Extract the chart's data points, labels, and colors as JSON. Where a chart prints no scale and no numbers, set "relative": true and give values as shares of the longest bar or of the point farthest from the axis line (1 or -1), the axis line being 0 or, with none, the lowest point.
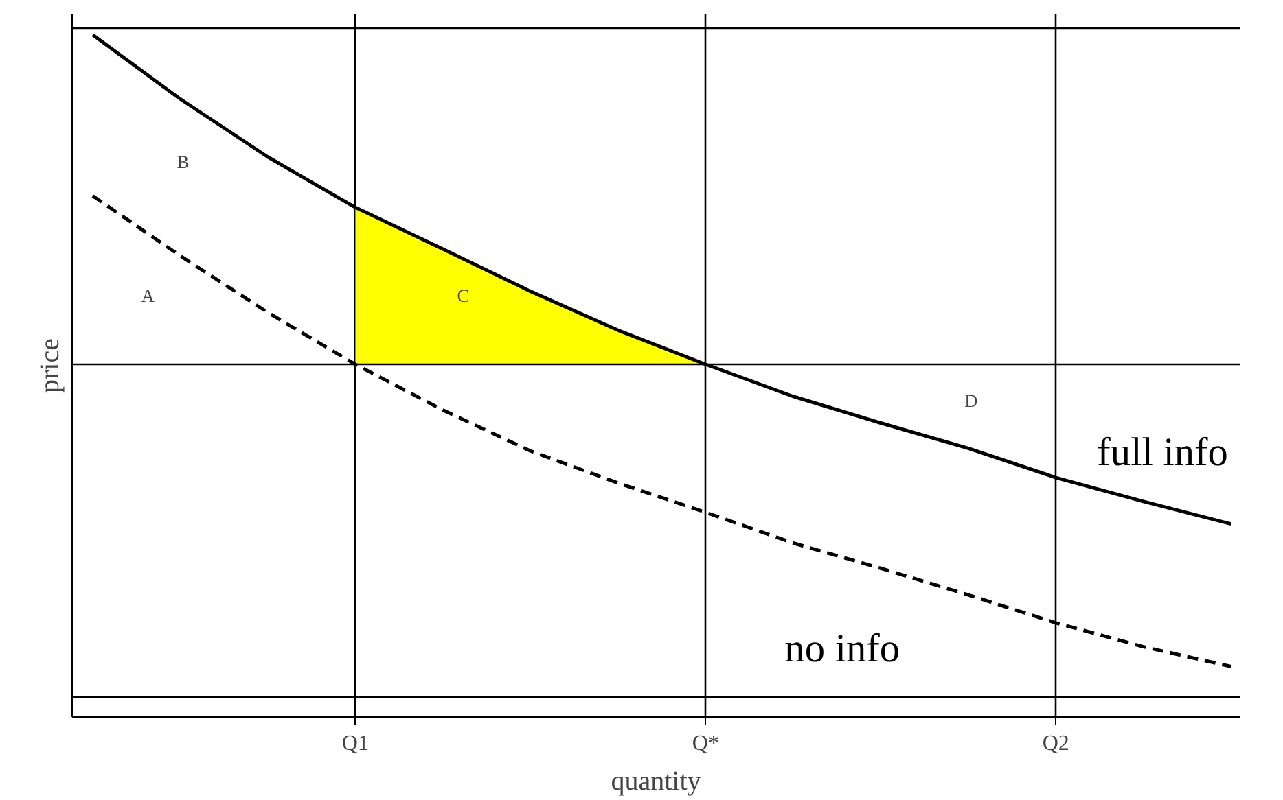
{
  "chart_data": {
    "type": "line",
    "relative": true,
    "xlabel": "quantity",
    "ylabel": "price",
    "categories": [
      null,
      null,
      null,
      "Q1",
      null,
      null,
      null,
      "Q*",
      null,
      null,
      null,
      "Q2",
      null,
      null
    ],
    "grid": "x",
    "series": [
      {
        "name": "full info",
        "color": "#000000",
        "line_style": "solid",
        "values": [
          1.0,
          0.906,
          0.821,
          0.747,
          0.686,
          0.624,
          0.567,
          0.517,
          0.47,
          0.431,
          0.394,
          0.351,
          0.316,
          0.283
        ]
      },
      {
        "name": "no info",
        "color": "#000000",
        "line_style": "dashed",
        "values": [
          0.764,
          0.676,
          0.593,
          0.517,
          0.45,
          0.39,
          0.343,
          0.3,
          0.255,
          0.218,
          0.179,
          0.138,
          0.103,
          0.074
        ]
      },
      {
        "type": "area",
        "color": "#ffff00",
        "values": [
          null,
          null,
          null,
          0.747,
          0.686,
          0.624,
          0.567,
          0.517,
          null,
          null,
          null,
          null,
          null,
          null
        ]
      }
    ],
    "ref_lines": [
      {
        "axis": "y",
        "value": 1.01
      },
      {
        "axis": "y",
        "value": 0.517
      },
      {
        "axis": "y",
        "value": 0.029
      }
    ],
    "annotations": [
      "A",
      "B",
      "C",
      "D"
    ]
  }
}
